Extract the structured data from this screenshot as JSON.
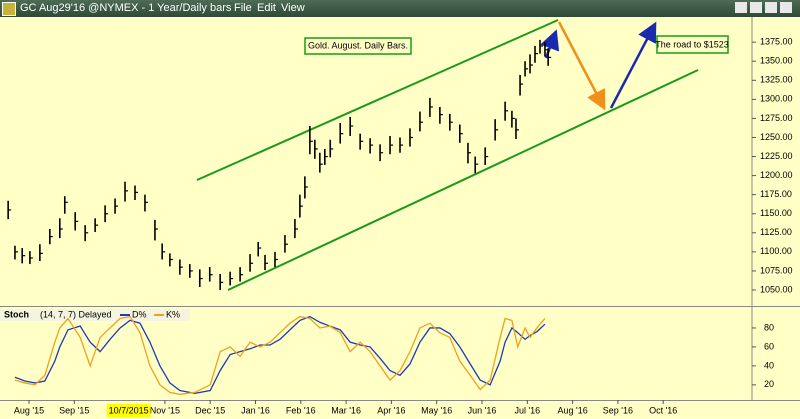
{
  "menu": [
    "File",
    "Edit",
    "View"
  ],
  "chart_data": [
    {
      "type": "ohlc",
      "title": "GC Aug29'16 @NYMEX - 1 Year/Daily bars",
      "annotations": [
        "Gold. August. Daily Bars.",
        "The road to $1523"
      ],
      "color": "#000000",
      "x": [
        -0.46,
        -0.31,
        -0.15,
        0.02,
        0.24,
        0.46,
        0.68,
        0.79,
        1.02,
        1.24,
        1.46,
        1.68,
        1.9,
        2.12,
        2.34,
        2.56,
        2.78,
        2.94,
        3.11,
        3.33,
        3.55,
        3.77,
        3.99,
        4.22,
        4.44,
        4.66,
        4.88,
        5.06,
        5.21,
        5.43,
        5.65,
        5.87,
        5.98,
        6.09,
        6.2,
        6.31,
        6.42,
        6.53,
        6.65,
        6.87,
        7.09,
        7.31,
        7.53,
        7.75,
        7.97,
        8.19,
        8.41,
        8.63,
        8.85,
        9.07,
        9.29,
        9.51,
        9.69,
        9.85,
        10.07,
        10.29,
        10.51,
        10.66,
        10.75,
        10.84,
        10.95,
        11.06,
        11.17,
        11.28,
        11.39,
        11.46
      ],
      "high": [
        1167,
        1108,
        1105,
        1101,
        1110,
        1130,
        1144,
        1173,
        1152,
        1135,
        1144,
        1161,
        1170,
        1192,
        1187,
        1175,
        1142,
        1111,
        1098,
        1090,
        1084,
        1077,
        1080,
        1071,
        1074,
        1080,
        1097,
        1113,
        1096,
        1100,
        1122,
        1143,
        1175,
        1199,
        1265,
        1247,
        1230,
        1235,
        1247,
        1269,
        1277,
        1255,
        1249,
        1241,
        1252,
        1250,
        1262,
        1284,
        1302,
        1290,
        1281,
        1267,
        1243,
        1225,
        1237,
        1274,
        1297,
        1285,
        1275,
        1332,
        1350,
        1359,
        1370,
        1378,
        1375,
        1367
      ],
      "low": [
        1143,
        1090,
        1085,
        1084,
        1088,
        1110,
        1118,
        1150,
        1128,
        1114,
        1126,
        1139,
        1150,
        1166,
        1168,
        1153,
        1115,
        1090,
        1081,
        1070,
        1066,
        1054,
        1061,
        1050,
        1056,
        1061,
        1074,
        1094,
        1076,
        1080,
        1099,
        1118,
        1145,
        1170,
        1228,
        1222,
        1204,
        1214,
        1224,
        1242,
        1252,
        1234,
        1229,
        1219,
        1228,
        1230,
        1238,
        1258,
        1277,
        1268,
        1259,
        1243,
        1216,
        1203,
        1214,
        1246,
        1272,
        1263,
        1248,
        1305,
        1330,
        1334,
        1348,
        1360,
        1356,
        1344
      ],
      "close": [
        1155,
        1100,
        1095,
        1092,
        1098,
        1120,
        1130,
        1165,
        1140,
        1125,
        1135,
        1150,
        1160,
        1180,
        1178,
        1165,
        1130,
        1100,
        1090,
        1080,
        1075,
        1065,
        1070,
        1060,
        1065,
        1070,
        1085,
        1105,
        1085,
        1090,
        1110,
        1130,
        1160,
        1185,
        1245,
        1235,
        1215,
        1225,
        1235,
        1255,
        1265,
        1245,
        1240,
        1230,
        1240,
        1240,
        1250,
        1270,
        1290,
        1280,
        1270,
        1255,
        1230,
        1215,
        1225,
        1260,
        1285,
        1275,
        1260,
        1320,
        1340,
        1345,
        1360,
        1370,
        1365,
        1355
      ],
      "xlim": [
        -0.64,
        15.96
      ],
      "xticks": [
        {
          "value": 0,
          "label": "Aug '15"
        },
        {
          "value": 1,
          "label": "Sep '15"
        },
        {
          "value": 3,
          "label": "Nov '15"
        },
        {
          "value": 4,
          "label": "Dec '15"
        },
        {
          "value": 5,
          "label": "Jan '16"
        },
        {
          "value": 6,
          "label": "Feb '16"
        },
        {
          "value": 7,
          "label": "Mar '16"
        },
        {
          "value": 8,
          "label": "Apr '16"
        },
        {
          "value": 9,
          "label": "May '16"
        },
        {
          "value": 10,
          "label": "Jun '16"
        },
        {
          "value": 11,
          "label": "Jul '16"
        },
        {
          "value": 12,
          "label": "Aug '16"
        },
        {
          "value": 13,
          "label": "Sep '16"
        },
        {
          "value": 14,
          "label": "Oct '16"
        }
      ],
      "cursor": {
        "value": 2.2,
        "label": "10/7/2015"
      },
      "ylim": [
        1029,
        1408
      ],
      "yticks": [
        {
          "value": 1050,
          "label": "1050.00"
        },
        {
          "value": 1075,
          "label": "1075.00"
        },
        {
          "value": 1100,
          "label": "1100.00"
        },
        {
          "value": 1125,
          "label": "1125.00"
        },
        {
          "value": 1150,
          "label": "1150.00"
        },
        {
          "value": 1175,
          "label": "1175.00"
        },
        {
          "value": 1200,
          "label": "1200.00"
        },
        {
          "value": 1225,
          "label": "1225.00"
        },
        {
          "value": 1250,
          "label": "1250.00"
        },
        {
          "value": 1275,
          "label": "1275.00"
        },
        {
          "value": 1300,
          "label": "1300.00"
        },
        {
          "value": 1325,
          "label": "1325.00"
        },
        {
          "value": 1350,
          "label": "1350.00"
        },
        {
          "value": 1375,
          "label": "1375.00"
        }
      ],
      "grid": false
    },
    {
      "type": "line",
      "title": "Stoch",
      "subtitle": "(14, 7, 7) Delayed",
      "x": [
        -0.31,
        -0.09,
        0.13,
        0.35,
        0.57,
        0.68,
        0.86,
        1.13,
        1.35,
        1.57,
        1.79,
        2.01,
        2.23,
        2.45,
        2.67,
        2.89,
        3.11,
        3.33,
        3.66,
        4.0,
        4.22,
        4.44,
        4.66,
        4.88,
        5.1,
        5.32,
        5.54,
        5.76,
        5.98,
        6.2,
        6.42,
        6.64,
        6.87,
        7.09,
        7.31,
        7.53,
        7.75,
        7.97,
        8.19,
        8.41,
        8.63,
        8.85,
        9.07,
        9.29,
        9.51,
        9.74,
        9.96,
        10.18,
        10.4,
        10.51,
        10.66,
        10.79,
        10.95,
        11.06,
        11.21,
        11.39
      ],
      "series": [
        {
          "name": "D%",
          "color": "#1c3cb4",
          "values": [
            28,
            24,
            22,
            24,
            45,
            60,
            78,
            82,
            65,
            55,
            68,
            80,
            88,
            85,
            65,
            40,
            22,
            14,
            11,
            14,
            35,
            52,
            55,
            58,
            62,
            62,
            68,
            78,
            88,
            92,
            86,
            82,
            78,
            65,
            62,
            60,
            48,
            35,
            30,
            42,
            65,
            80,
            80,
            74,
            60,
            42,
            25,
            20,
            45,
            65,
            80,
            75,
            68,
            72,
            76,
            84
          ]
        },
        {
          "name": "K%",
          "color": "#f0a020",
          "values": [
            25,
            22,
            20,
            30,
            65,
            80,
            90,
            70,
            40,
            70,
            80,
            90,
            92,
            75,
            40,
            20,
            12,
            10,
            12,
            20,
            55,
            60,
            50,
            65,
            60,
            65,
            75,
            85,
            92,
            90,
            80,
            82,
            75,
            55,
            65,
            55,
            40,
            25,
            35,
            55,
            80,
            85,
            75,
            70,
            45,
            30,
            15,
            25,
            70,
            90,
            88,
            60,
            80,
            70,
            80,
            90
          ]
        }
      ],
      "ylim": [
        4,
        100
      ],
      "yticks": [
        20,
        40,
        60,
        80
      ],
      "grid": false
    }
  ]
}
